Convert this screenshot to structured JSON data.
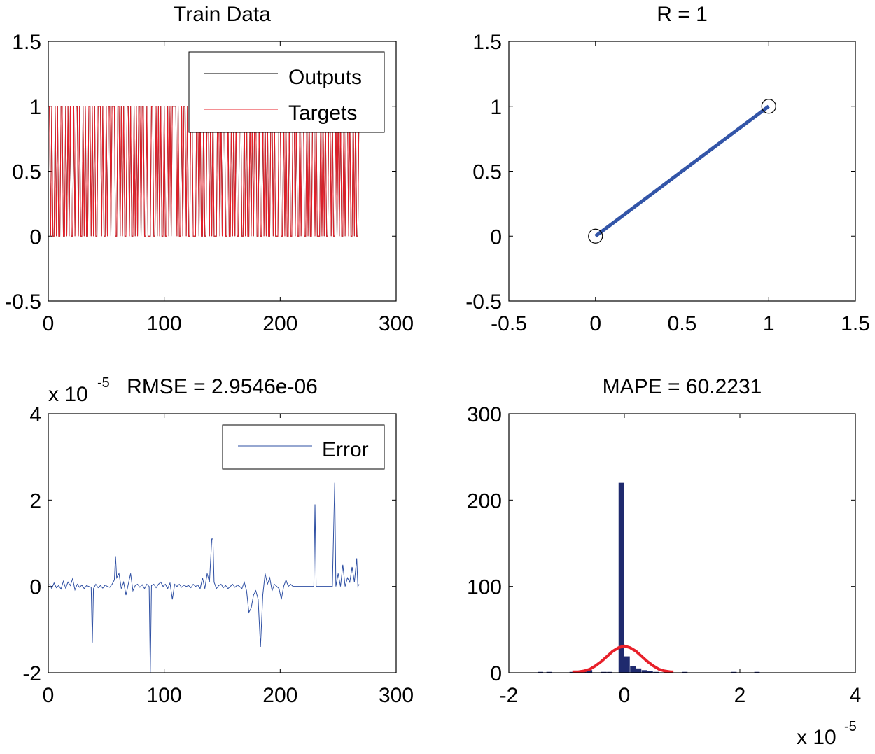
{
  "chart_data": [
    {
      "type": "line",
      "title": "Train Data",
      "xlim": [
        0,
        300
      ],
      "ylim": [
        -0.5,
        1.5
      ],
      "xticks": [
        0,
        100,
        200,
        300
      ],
      "yticks": [
        -0.5,
        0,
        0.5,
        1,
        1.5
      ],
      "xtick_labels": [
        "0",
        "100",
        "200",
        "300"
      ],
      "ytick_labels": [
        "-0.5",
        "0",
        "0.5",
        "1",
        "1.5"
      ],
      "legend": {
        "position": "top-right",
        "entries": [
          "Outputs",
          "Targets"
        ]
      },
      "series": [
        {
          "name": "Outputs",
          "color": "#000000",
          "overlaps": "Targets"
        },
        {
          "name": "Targets",
          "color": "#e8202a",
          "x_start": 1,
          "values": [
            1,
            0,
            1,
            0,
            0,
            1,
            0,
            1,
            0,
            0,
            1,
            1,
            0,
            0,
            1,
            0,
            1,
            0,
            1,
            0,
            0,
            1,
            0,
            1,
            1,
            0,
            1,
            0,
            0,
            1,
            0,
            1,
            0,
            0,
            1,
            1,
            0,
            1,
            0,
            1,
            0,
            0,
            1,
            1,
            1,
            0,
            1,
            0,
            0,
            1,
            0,
            1,
            1,
            0,
            1,
            1,
            1,
            0,
            0,
            1,
            1,
            0,
            1,
            0,
            1,
            0,
            0,
            1,
            1,
            0,
            1,
            0,
            0,
            1,
            0,
            1,
            0,
            1,
            1,
            0,
            1,
            1,
            0,
            0,
            1,
            0,
            0,
            0,
            1,
            1,
            0,
            0,
            1,
            0,
            1,
            0,
            1,
            0,
            0,
            1,
            0,
            0,
            1,
            0,
            1,
            0,
            1,
            1,
            1,
            1,
            0,
            1,
            0,
            0,
            1,
            0,
            1,
            1,
            0,
            1,
            0,
            0,
            1,
            1,
            0,
            0,
            0,
            1,
            1,
            0,
            1,
            0,
            0,
            1,
            0,
            0,
            1,
            1,
            0,
            1,
            0,
            1,
            0,
            0,
            0,
            1,
            1,
            0,
            1,
            0,
            1,
            1,
            0,
            0,
            1,
            0,
            0,
            1,
            0,
            1,
            0,
            1,
            0,
            0,
            1,
            1,
            0,
            0,
            1,
            0,
            1,
            0,
            0,
            1,
            0,
            1,
            0,
            1,
            1,
            0,
            0,
            1,
            0,
            0,
            1,
            0,
            1,
            0,
            1,
            0,
            0,
            1,
            1,
            0,
            1,
            0,
            0,
            0,
            1,
            1,
            0,
            0,
            1,
            0,
            1,
            0,
            0,
            1,
            0,
            0,
            1,
            1,
            0,
            1,
            0,
            0,
            1,
            0,
            1,
            1,
            0,
            0,
            1,
            0,
            1,
            0,
            0,
            1,
            1,
            0,
            1,
            0,
            0,
            0,
            1,
            0,
            1,
            0,
            1,
            0,
            0,
            1,
            1,
            0,
            1,
            0,
            0,
            1,
            0,
            1,
            0,
            1,
            0,
            0,
            1,
            0,
            1,
            1,
            0,
            1,
            0,
            0,
            1,
            0,
            1,
            0,
            0,
            1,
            1
          ]
        }
      ]
    },
    {
      "type": "scatter",
      "title": "R = 1",
      "xlim": [
        -0.5,
        1.5
      ],
      "ylim": [
        -0.5,
        1.5
      ],
      "xticks": [
        -0.5,
        0,
        0.5,
        1,
        1.5
      ],
      "yticks": [
        -0.5,
        0,
        0.5,
        1,
        1.5
      ],
      "xtick_labels": [
        "-0.5",
        "0",
        "0.5",
        "1",
        "1.5"
      ],
      "ytick_labels": [
        "-0.5",
        "0",
        "0.5",
        "1",
        "1.5"
      ],
      "points": [
        {
          "x": 0,
          "y": 0
        },
        {
          "x": 1,
          "y": 1
        }
      ],
      "fit_line": {
        "x": [
          0,
          1
        ],
        "y": [
          0,
          1
        ],
        "color": "#3355a8"
      }
    },
    {
      "type": "line",
      "title": "RMSE = 2.9546e-06",
      "exponent_label": {
        "base": "x 10",
        "power": "-5"
      },
      "xlim": [
        0,
        300
      ],
      "ylim": [
        -2,
        4
      ],
      "xticks": [
        0,
        100,
        200,
        300
      ],
      "yticks": [
        -2,
        0,
        2,
        4
      ],
      "xtick_labels": [
        "0",
        "100",
        "200",
        "300"
      ],
      "ytick_labels": [
        "-2",
        "0",
        "2",
        "4"
      ],
      "legend": {
        "position": "top-right",
        "entries": [
          "Error"
        ]
      },
      "series": [
        {
          "name": "Error",
          "color": "#2e4fa3",
          "points": [
            [
              1,
              0.05
            ],
            [
              3,
              -0.05
            ],
            [
              5,
              0.08
            ],
            [
              7,
              -0.03
            ],
            [
              9,
              0.02
            ],
            [
              11,
              -0.06
            ],
            [
              13,
              0.12
            ],
            [
              15,
              -0.04
            ],
            [
              17,
              0.1
            ],
            [
              19,
              0.02
            ],
            [
              21,
              0.18
            ],
            [
              23,
              -0.08
            ],
            [
              25,
              0.05
            ],
            [
              27,
              -0.02
            ],
            [
              29,
              0.03
            ],
            [
              31,
              -0.05
            ],
            [
              33,
              0.02
            ],
            [
              35,
              0.0
            ],
            [
              37,
              -0.02
            ],
            [
              38,
              -1.3
            ],
            [
              39,
              -0.05
            ],
            [
              41,
              0.05
            ],
            [
              43,
              -0.03
            ],
            [
              45,
              0.02
            ],
            [
              47,
              -0.04
            ],
            [
              49,
              0.03
            ],
            [
              51,
              0.0
            ],
            [
              53,
              -0.02
            ],
            [
              55,
              0.05
            ],
            [
              57,
              0.15
            ],
            [
              58,
              0.7
            ],
            [
              59,
              0.2
            ],
            [
              61,
              0.3
            ],
            [
              63,
              -0.05
            ],
            [
              65,
              0.1
            ],
            [
              67,
              -0.2
            ],
            [
              69,
              0.05
            ],
            [
              71,
              0.3
            ],
            [
              73,
              -0.1
            ],
            [
              75,
              0.02
            ],
            [
              77,
              0.05
            ],
            [
              79,
              -0.02
            ],
            [
              81,
              0.04
            ],
            [
              83,
              -0.05
            ],
            [
              85,
              0.05
            ],
            [
              87,
              0.0
            ],
            [
              88,
              -2.0
            ],
            [
              89,
              0.02
            ],
            [
              91,
              0.05
            ],
            [
              93,
              -0.03
            ],
            [
              95,
              0.05
            ],
            [
              97,
              0.1
            ],
            [
              99,
              0.0
            ],
            [
              101,
              0.05
            ],
            [
              103,
              -0.05
            ],
            [
              105,
              0.08
            ],
            [
              107,
              -0.3
            ],
            [
              109,
              0.05
            ],
            [
              111,
              0.0
            ],
            [
              113,
              0.05
            ],
            [
              115,
              -0.02
            ],
            [
              117,
              0.03
            ],
            [
              119,
              0.0
            ],
            [
              121,
              0.02
            ],
            [
              123,
              -0.03
            ],
            [
              125,
              0.05
            ],
            [
              127,
              0.0
            ],
            [
              129,
              0.03
            ],
            [
              131,
              -0.05
            ],
            [
              133,
              0.2
            ],
            [
              135,
              -0.05
            ],
            [
              137,
              0.3
            ],
            [
              139,
              0.1
            ],
            [
              141,
              1.1
            ],
            [
              142,
              1.1
            ],
            [
              143,
              0.1
            ],
            [
              145,
              -0.05
            ],
            [
              147,
              0.02
            ],
            [
              149,
              0.05
            ],
            [
              151,
              -0.03
            ],
            [
              153,
              0.02
            ],
            [
              155,
              -0.05
            ],
            [
              157,
              0.0
            ],
            [
              159,
              0.05
            ],
            [
              161,
              -0.02
            ],
            [
              163,
              0.03
            ],
            [
              165,
              0.0
            ],
            [
              167,
              -0.05
            ],
            [
              169,
              0.1
            ],
            [
              171,
              -0.1
            ],
            [
              173,
              -0.6
            ],
            [
              175,
              -0.5
            ],
            [
              177,
              -0.2
            ],
            [
              179,
              -0.1
            ],
            [
              181,
              -0.3
            ],
            [
              183,
              -1.4
            ],
            [
              185,
              -0.2
            ],
            [
              187,
              0.3
            ],
            [
              189,
              0.05
            ],
            [
              191,
              0.2
            ],
            [
              193,
              -0.1
            ],
            [
              195,
              0.05
            ],
            [
              197,
              0.0
            ],
            [
              199,
              -0.05
            ],
            [
              201,
              -0.3
            ],
            [
              203,
              0.0
            ],
            [
              205,
              0.15
            ],
            [
              207,
              0.0
            ],
            [
              209,
              0.05
            ],
            [
              211,
              0.0
            ],
            [
              213,
              0.0
            ],
            [
              215,
              0.0
            ],
            [
              217,
              0.0
            ],
            [
              219,
              0.0
            ],
            [
              221,
              0.0
            ],
            [
              223,
              0.0
            ],
            [
              225,
              0.0
            ],
            [
              227,
              0.0
            ],
            [
              229,
              0.0
            ],
            [
              230,
              1.9
            ],
            [
              231,
              0.0
            ],
            [
              233,
              0.0
            ],
            [
              235,
              0.0
            ],
            [
              237,
              0.0
            ],
            [
              239,
              0.0
            ],
            [
              241,
              0.0
            ],
            [
              243,
              0.0
            ],
            [
              245,
              0.0
            ],
            [
              247,
              2.4
            ],
            [
              248,
              0.0
            ],
            [
              250,
              0.3
            ],
            [
              252,
              0.0
            ],
            [
              254,
              0.5
            ],
            [
              256,
              0.0
            ],
            [
              258,
              0.2
            ],
            [
              260,
              0.1
            ],
            [
              262,
              0.45
            ],
            [
              264,
              0.1
            ],
            [
              266,
              0.65
            ],
            [
              267,
              0.0
            ],
            [
              268,
              0.05
            ]
          ]
        }
      ]
    },
    {
      "type": "bar",
      "title": "MAPE = 60.2231",
      "exponent_label": {
        "base": "x 10",
        "power": "-5"
      },
      "xlim": [
        -2,
        4
      ],
      "ylim": [
        0,
        300
      ],
      "xticks": [
        -2,
        0,
        2,
        4
      ],
      "yticks": [
        0,
        100,
        200,
        300
      ],
      "xtick_labels": [
        "-2",
        "0",
        "2",
        "4"
      ],
      "ytick_labels": [
        "0",
        "100",
        "200",
        "300"
      ],
      "bar_color": "#1f2a6e",
      "bin_width": 0.1,
      "bins": [
        {
          "center": -1.45,
          "count": 1
        },
        {
          "center": -1.3,
          "count": 1
        },
        {
          "center": -0.9,
          "count": 1
        },
        {
          "center": -0.7,
          "count": 2
        },
        {
          "center": -0.6,
          "count": 3
        },
        {
          "center": -0.35,
          "count": 1
        },
        {
          "center": -0.25,
          "count": 1
        },
        {
          "center": -0.05,
          "count": 220
        },
        {
          "center": 0.05,
          "count": 19
        },
        {
          "center": 0.15,
          "count": 8
        },
        {
          "center": 0.25,
          "count": 5
        },
        {
          "center": 0.35,
          "count": 3
        },
        {
          "center": 0.45,
          "count": 2
        },
        {
          "center": 0.55,
          "count": 1
        },
        {
          "center": 1.05,
          "count": 1
        },
        {
          "center": 1.9,
          "count": 1
        },
        {
          "center": 2.3,
          "count": 1
        }
      ],
      "fit_curve": {
        "color": "#e8202a",
        "x": [
          -0.9,
          -0.8,
          -0.7,
          -0.6,
          -0.5,
          -0.4,
          -0.3,
          -0.2,
          -0.1,
          0.0,
          0.1,
          0.2,
          0.3,
          0.4,
          0.5,
          0.6,
          0.7,
          0.8,
          0.85
        ],
        "y": [
          1,
          1,
          2,
          4,
          8,
          13,
          19,
          25,
          29,
          31,
          29,
          25,
          19,
          13,
          8,
          4,
          2,
          1,
          1
        ]
      }
    }
  ]
}
